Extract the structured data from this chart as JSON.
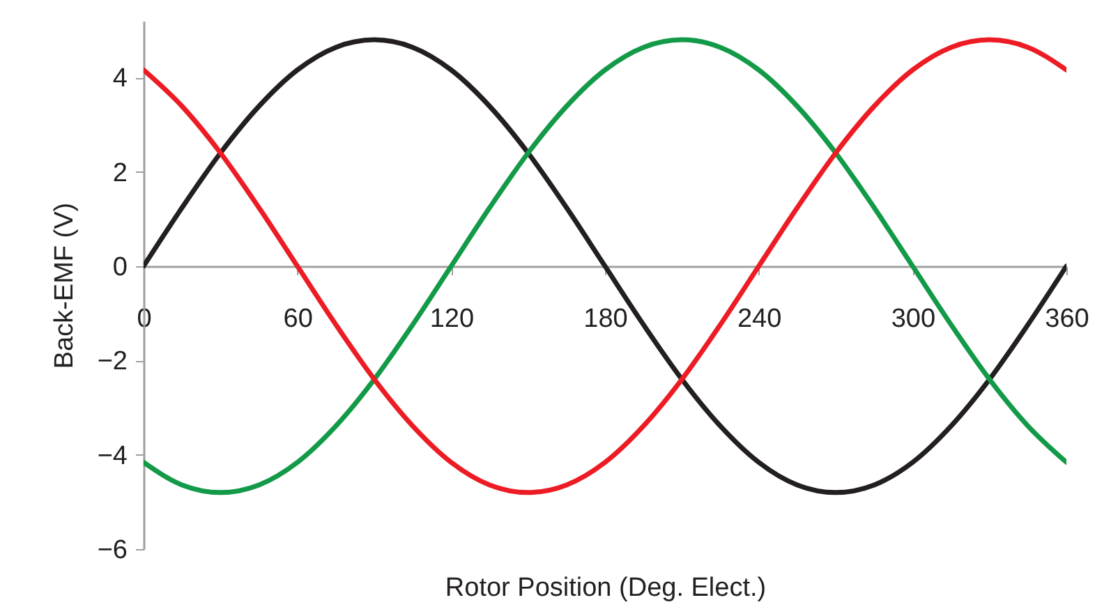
{
  "chart_data": {
    "type": "line",
    "xlabel": "Rotor Position (Deg. Elect.)",
    "ylabel": "Back-EMF (V)",
    "x": [
      0,
      15,
      30,
      45,
      60,
      75,
      90,
      105,
      120,
      135,
      150,
      165,
      180,
      195,
      210,
      225,
      240,
      255,
      270,
      285,
      300,
      315,
      330,
      345,
      360
    ],
    "xlim": [
      0,
      360
    ],
    "xticks": [
      0,
      60,
      120,
      180,
      240,
      300,
      360
    ],
    "ylim": [
      -6,
      5.2
    ],
    "yticks": [
      -6,
      -4,
      -2,
      0,
      2,
      4
    ],
    "grid": false,
    "marker": "none",
    "line_style": "solid",
    "series": [
      {
        "color": "#231f20",
        "values": [
          0,
          1.24,
          2.4,
          3.39,
          4.16,
          4.64,
          4.8,
          4.64,
          4.16,
          3.39,
          2.4,
          1.24,
          0,
          -1.24,
          -2.4,
          -3.39,
          -4.16,
          -4.64,
          -4.8,
          -4.64,
          -4.16,
          -3.39,
          -2.4,
          -1.24,
          0
        ]
      },
      {
        "color": "#139a48",
        "values": [
          -4.16,
          -4.64,
          -4.8,
          -4.64,
          -4.16,
          -3.39,
          -2.4,
          -1.24,
          0,
          1.24,
          2.4,
          3.39,
          4.16,
          4.64,
          4.8,
          4.64,
          4.16,
          3.39,
          2.4,
          1.24,
          0,
          -1.24,
          -2.4,
          -3.39,
          -4.16
        ]
      },
      {
        "color": "#ed1c24",
        "values": [
          4.16,
          3.39,
          2.4,
          1.24,
          0,
          -1.24,
          -2.4,
          -3.39,
          -4.16,
          -4.64,
          -4.8,
          -4.64,
          -4.16,
          -3.39,
          -2.4,
          -1.24,
          0,
          1.24,
          2.4,
          3.39,
          4.16,
          4.64,
          4.8,
          4.64,
          4.16
        ]
      }
    ]
  }
}
